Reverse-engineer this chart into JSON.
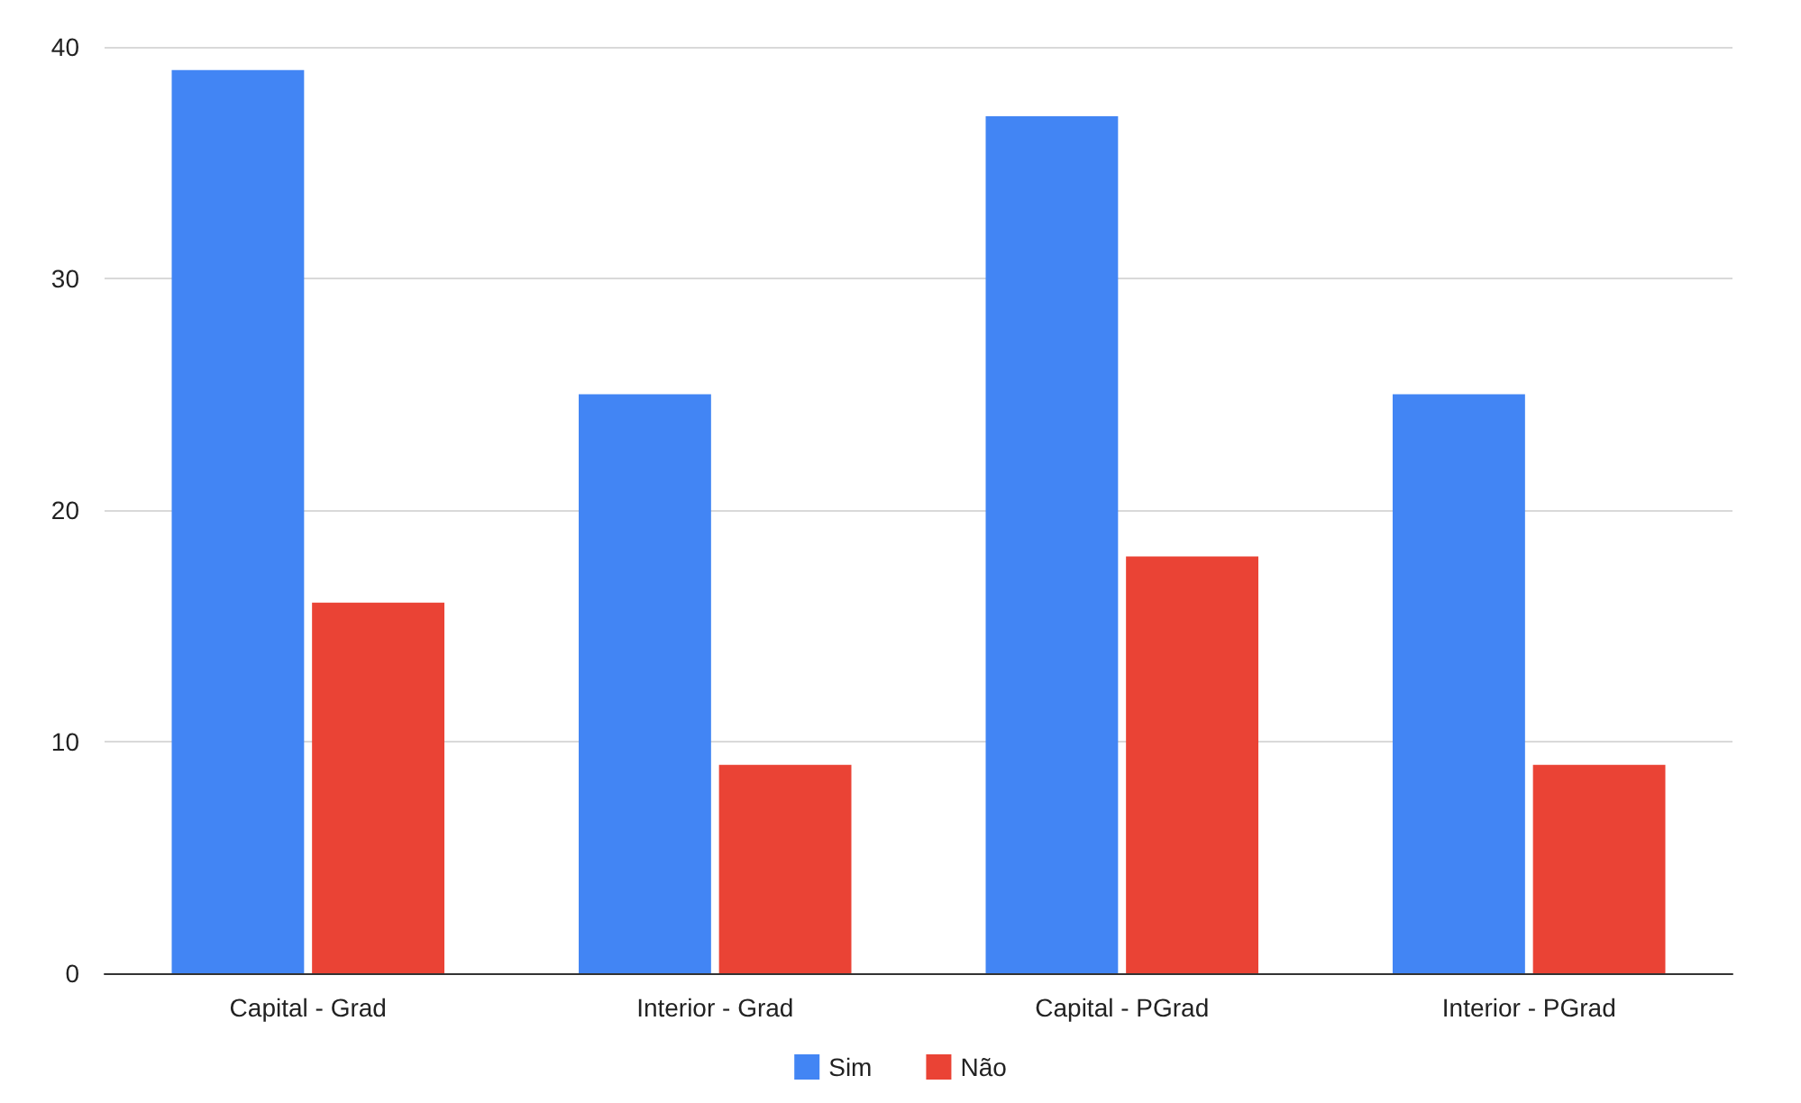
{
  "chart_data": {
    "type": "bar",
    "categories": [
      "Capital - Grad",
      "Interior - Grad",
      "Capital - PGrad",
      "Interior - PGrad"
    ],
    "series": [
      {
        "name": "Sim",
        "color": "#4285f4",
        "values": [
          39,
          25,
          37,
          25
        ]
      },
      {
        "name": "Não",
        "color": "#ea4335",
        "values": [
          16,
          9,
          18,
          9
        ]
      }
    ],
    "ylim": [
      0,
      40
    ],
    "yticks": [
      0,
      10,
      20,
      30,
      40
    ],
    "grid": "y",
    "legend": "bottom"
  }
}
